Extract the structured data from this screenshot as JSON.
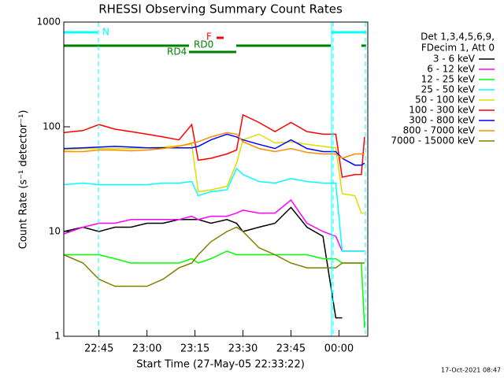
{
  "chart_data": {
    "type": "line",
    "title": "RHESSI Observing Summary Count Rates",
    "x_label": "Start Time (27-May-05 22:33:22)",
    "y_label": "Count Rate (s⁻¹ detector⁻¹)",
    "legend_title": [
      "Det 1,3,4,5,6,9,",
      "FDecim 1, Att 0"
    ],
    "footer": "17-Oct-2021 08:47",
    "state_labels": [
      "N",
      "F",
      "RD0",
      "RD4"
    ],
    "log_y": true,
    "legend": "right",
    "xlim": [
      "22:34",
      "00:09"
    ],
    "xticks": [
      "22:45",
      "23:00",
      "23:15",
      "23:30",
      "23:45",
      "00:00"
    ],
    "ylim": [
      1,
      1000
    ],
    "yticks": [
      1,
      10,
      100,
      1000
    ],
    "x": [
      "22:34",
      "22:40",
      "22:45",
      "22:50",
      "22:55",
      "23:00",
      "23:05",
      "23:10",
      "23:14",
      "23:16",
      "23:20",
      "23:25",
      "23:28",
      "23:30",
      "23:35",
      "23:40",
      "23:45",
      "23:50",
      "23:55",
      "23:59",
      "00:01",
      "00:05",
      "00:07",
      "00:08"
    ],
    "series": [
      {
        "name": "3 - 6 keV",
        "color": "#000000",
        "values": [
          10,
          11,
          10,
          11,
          11,
          12,
          12,
          13,
          13,
          13,
          12,
          13,
          12,
          10,
          11,
          12,
          17,
          11,
          9,
          1.5,
          1.5,
          null,
          null,
          null
        ]
      },
      {
        "name": "6 - 12 keV",
        "color": "#ff00ff",
        "values": [
          9.5,
          11,
          12,
          12,
          13,
          13,
          13,
          13,
          14,
          13,
          14,
          14,
          15,
          16,
          15,
          15,
          20,
          12,
          10,
          9,
          6.5,
          6.5,
          6.5,
          6.5
        ]
      },
      {
        "name": "12 - 25 keV",
        "color": "#00ff00",
        "values": [
          6,
          6,
          6,
          5.5,
          5,
          5,
          5,
          5,
          5.5,
          5,
          5.5,
          6.5,
          6,
          6,
          6,
          6,
          6,
          6,
          5.5,
          5.5,
          5,
          5,
          5,
          1.2
        ]
      },
      {
        "name": "25 - 50 keV",
        "color": "#00ffff",
        "values": [
          28,
          29,
          28,
          28,
          28,
          28,
          29,
          29,
          30,
          22,
          24,
          25,
          40,
          35,
          30,
          29,
          32,
          30,
          29,
          29,
          6.5,
          6.5,
          6.5,
          6.5
        ]
      },
      {
        "name": "50 - 100 keV",
        "color": "#dddd00",
        "values": [
          60,
          62,
          62,
          62,
          62,
          63,
          64,
          66,
          68,
          24,
          25,
          27,
          45,
          75,
          85,
          70,
          72,
          68,
          65,
          63,
          23,
          22,
          15,
          15
        ]
      },
      {
        "name": "100 - 300 keV",
        "color": "#ff0000",
        "values": [
          88,
          92,
          105,
          95,
          90,
          85,
          80,
          75,
          105,
          48,
          50,
          55,
          60,
          130,
          110,
          90,
          110,
          90,
          85,
          85,
          33,
          35,
          35,
          80
        ]
      },
      {
        "name": "300 - 800 keV",
        "color": "#0000ff",
        "values": [
          62,
          63,
          64,
          65,
          64,
          63,
          63,
          63,
          63,
          65,
          75,
          85,
          80,
          75,
          68,
          62,
          75,
          62,
          58,
          58,
          50,
          43,
          43,
          45
        ]
      },
      {
        "name": "800 - 7000 keV",
        "color": "#ff8c00",
        "values": [
          58,
          58,
          60,
          60,
          59,
          60,
          62,
          65,
          70,
          72,
          80,
          88,
          85,
          72,
          62,
          58,
          62,
          57,
          55,
          55,
          50,
          55,
          55,
          55
        ]
      },
      {
        "name": "7000 - 15000 keV",
        "color": "#808000",
        "values": [
          6,
          5,
          3.5,
          3,
          3,
          3,
          3.5,
          4.5,
          5,
          6,
          8,
          10,
          11,
          10,
          7,
          6,
          5,
          4.5,
          4.5,
          4.5,
          5,
          5,
          5,
          5
        ]
      }
    ]
  }
}
